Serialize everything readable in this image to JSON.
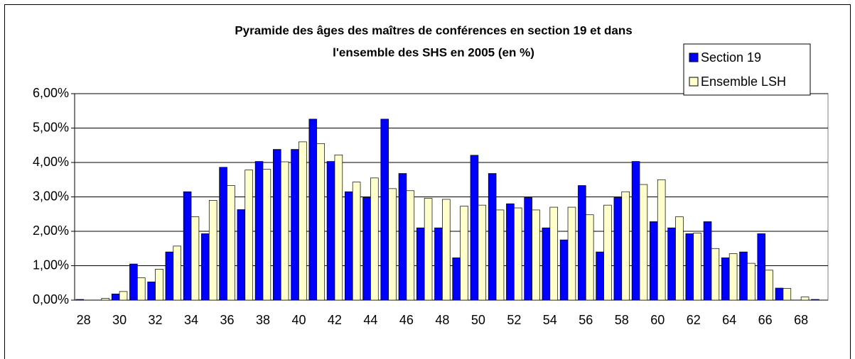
{
  "chart_data": {
    "type": "bar",
    "title": [
      "Pyramide des âges des maîtres de conférences en section 19 et dans",
      "l'ensemble des SHS en 2005 (en %)"
    ],
    "categories": [
      28,
      null,
      30,
      null,
      32,
      null,
      34,
      null,
      36,
      null,
      38,
      null,
      40,
      null,
      42,
      null,
      44,
      null,
      46,
      null,
      48,
      null,
      50,
      null,
      52,
      null,
      54,
      null,
      56,
      null,
      58,
      null,
      60,
      null,
      62,
      null,
      64,
      null,
      66,
      null,
      68,
      null
    ],
    "series": [
      {
        "name": "Section 19",
        "color": "#0000ff",
        "values": [
          0.02,
          0,
          0.18,
          1.05,
          0.53,
          1.4,
          3.15,
          1.93,
          3.86,
          2.63,
          4.03,
          4.38,
          4.38,
          5.26,
          4.03,
          3.15,
          2.98,
          5.26,
          3.68,
          2.1,
          2.1,
          1.23,
          4.21,
          3.68,
          2.8,
          2.98,
          2.1,
          1.75,
          3.33,
          1.4,
          2.98,
          4.03,
          2.28,
          2.1,
          1.93,
          2.28,
          1.23,
          1.4,
          1.93,
          0.35,
          0,
          0.02
        ]
      },
      {
        "name": "Ensemble LSH",
        "color": "#ffffcc",
        "values": [
          0,
          0.05,
          0.25,
          0.65,
          0.9,
          1.57,
          2.42,
          2.9,
          3.33,
          3.78,
          3.8,
          4.02,
          4.6,
          4.55,
          4.22,
          3.43,
          3.55,
          3.24,
          3.18,
          2.96,
          2.93,
          2.73,
          2.76,
          2.62,
          2.68,
          2.62,
          2.7,
          2.7,
          2.48,
          2.76,
          3.15,
          3.36,
          3.5,
          2.42,
          1.95,
          1.5,
          1.35,
          1.07,
          0.87,
          0.34,
          0.09,
          0
        ]
      }
    ],
    "ylim": [
      0,
      6
    ],
    "yticks": [
      {
        "value": 0,
        "label": "0,00%"
      },
      {
        "value": 1,
        "label": "1,00%"
      },
      {
        "value": 2,
        "label": "2,00%"
      },
      {
        "value": 3,
        "label": "3,00%"
      },
      {
        "value": 4,
        "label": "4,00%"
      },
      {
        "value": 5,
        "label": "5,00%"
      },
      {
        "value": 6,
        "label": "6,00%"
      }
    ],
    "grid": true,
    "legend": "top-right"
  }
}
